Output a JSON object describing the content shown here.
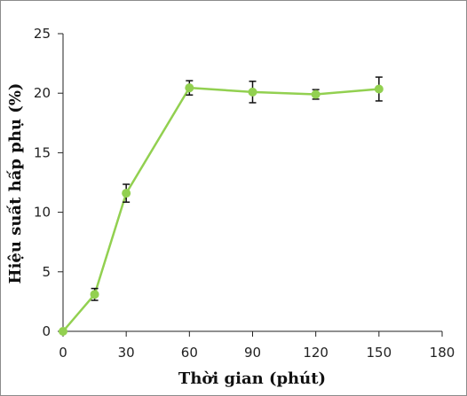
{
  "chart_data": {
    "type": "line",
    "title": "",
    "xlabel": "Thời gian (phút)",
    "ylabel": "Hiệu suất hấp phụ (%)",
    "xlim": [
      0,
      180
    ],
    "ylim": [
      0,
      25
    ],
    "x_ticks": [
      0,
      30,
      60,
      90,
      120,
      150,
      180
    ],
    "y_ticks": [
      0,
      5,
      10,
      15,
      20,
      25
    ],
    "x_tick_labels": [
      "0",
      "30",
      "60",
      "90",
      "120",
      "150",
      "180"
    ],
    "y_tick_labels": [
      "0",
      "5",
      "10",
      "15",
      "20",
      "25"
    ],
    "grid": false,
    "legend": "none",
    "series": [
      {
        "color": "#92d050",
        "x": [
          0,
          15,
          30,
          60,
          90,
          120,
          150
        ],
        "y": [
          0,
          3.1,
          11.6,
          20.45,
          20.1,
          19.9,
          20.35
        ],
        "error": [
          0,
          0.5,
          0.75,
          0.6,
          0.9,
          0.4,
          1.0
        ]
      }
    ]
  }
}
